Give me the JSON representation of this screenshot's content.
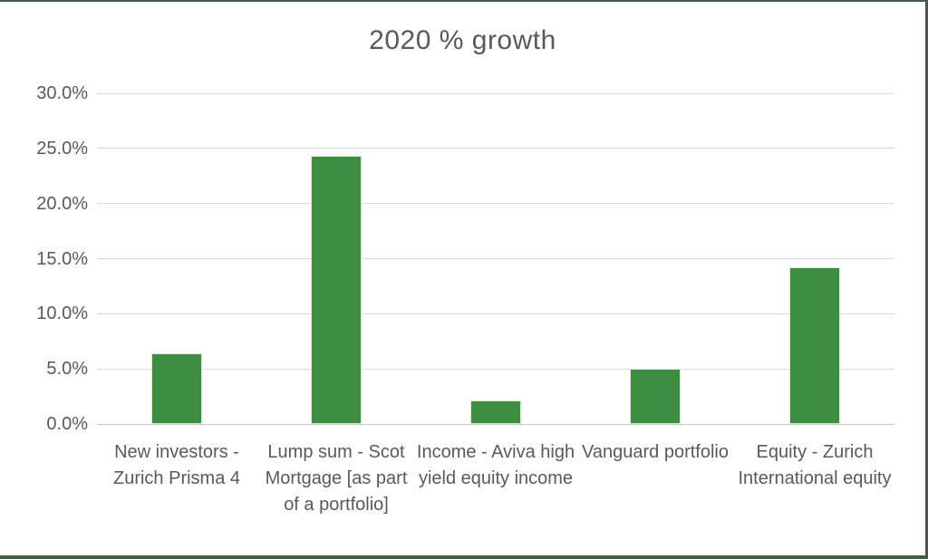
{
  "title": "2020 % growth",
  "colors": {
    "bar": "#3E8E41",
    "text": "#595959",
    "gridline": "#D9D9D9",
    "axis_line": "#C6C6C6",
    "frame": "#3F5E45"
  },
  "chart_data": {
    "type": "bar",
    "title": "2020 % growth",
    "categories": [
      "New investors - Zurich Prisma 4",
      "Lump sum - Scot Mortgage [as part of a portfolio]",
      "Income - Aviva high yield equity income",
      "Vanguard portfolio",
      "Equity - Zurich International equity"
    ],
    "values": [
      6.4,
      24.3,
      2.1,
      5.0,
      14.2
    ],
    "unit": "%",
    "xlabel": "",
    "ylabel": "",
    "ylim": [
      0,
      30
    ],
    "ytick_step": 5,
    "ytick_labels": [
      "0.0%",
      "5.0%",
      "10.0%",
      "15.0%",
      "20.0%",
      "25.0%",
      "30.0%"
    ],
    "grid": true,
    "legend": false,
    "series_color": "#3E8E41"
  }
}
